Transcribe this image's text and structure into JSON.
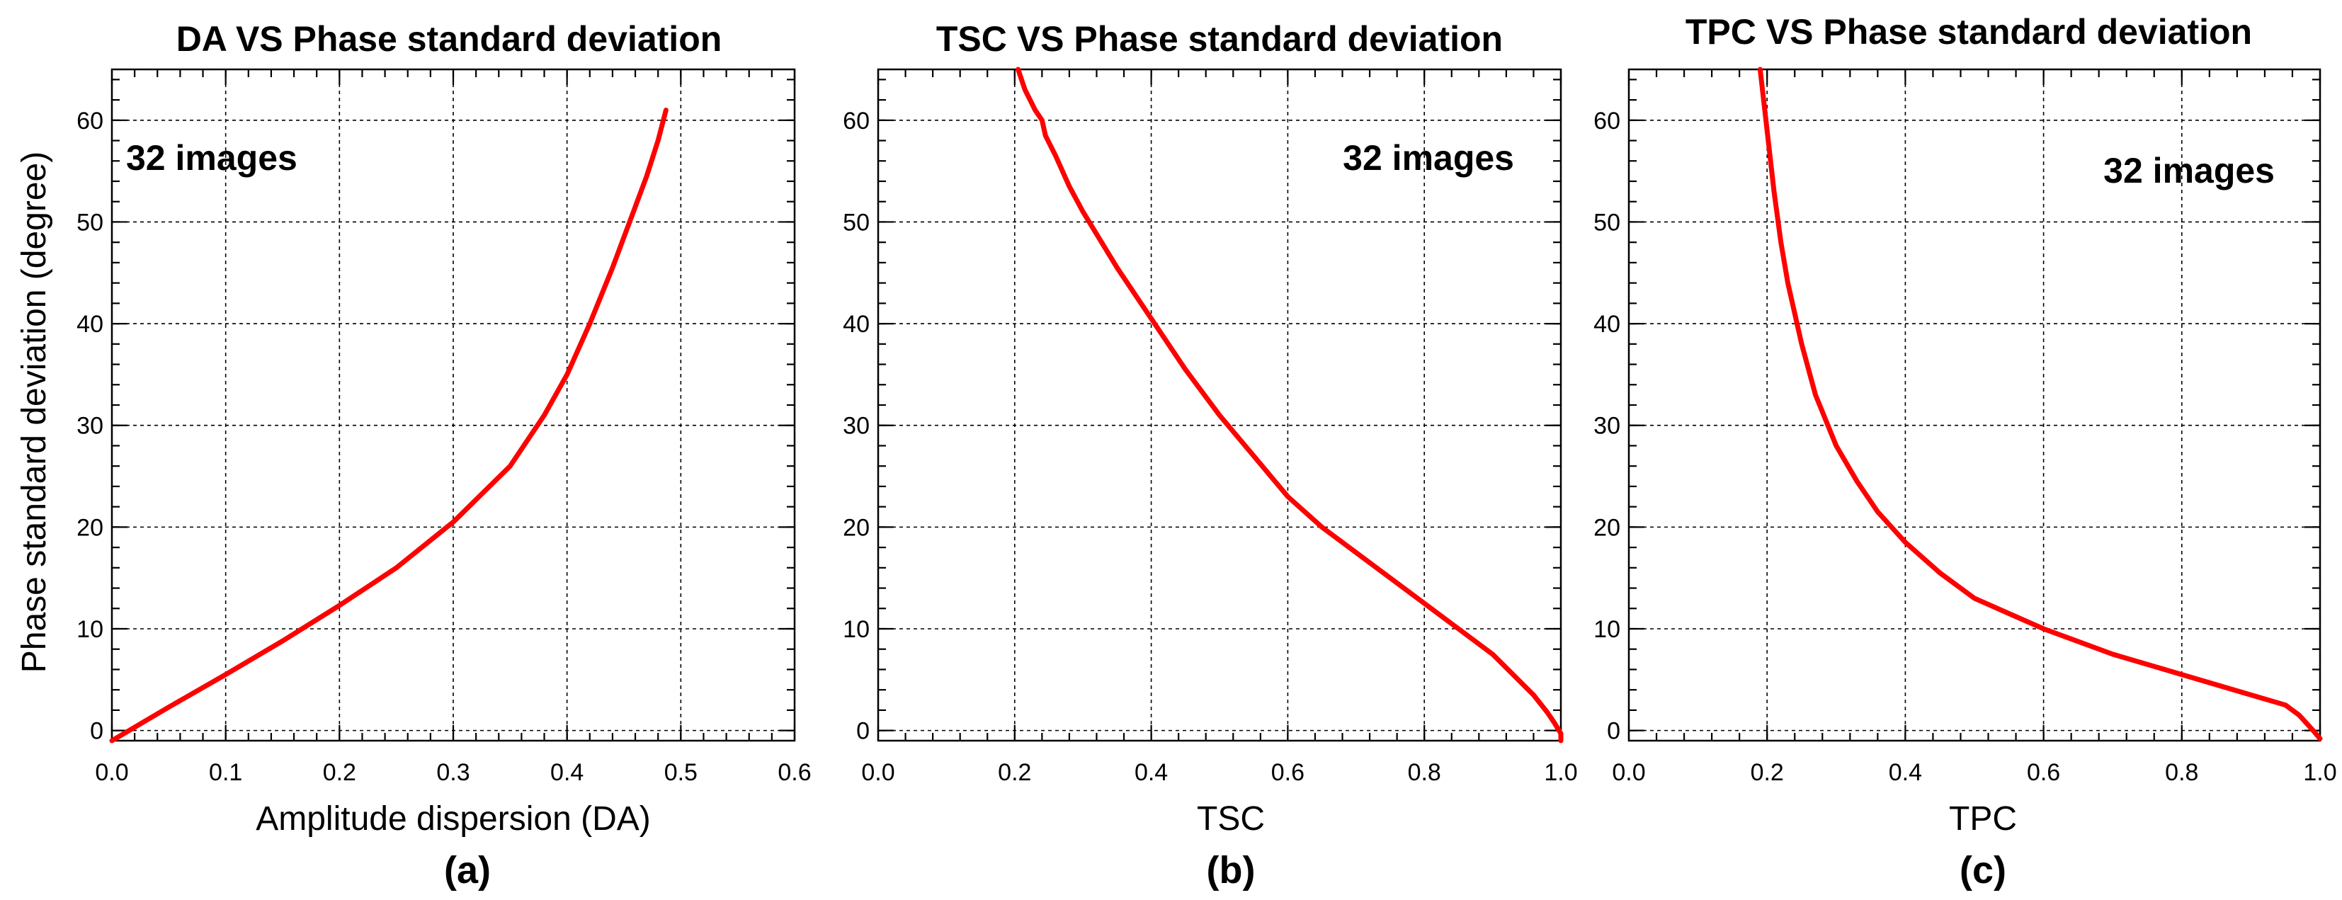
{
  "ylabel": "Phase standard deviation (degree)",
  "chart_data": [
    {
      "type": "line",
      "panel_label": "(a)",
      "title": "DA VS Phase standard deviation",
      "xlabel": "Amplitude dispersion (DA)",
      "ylabel": "Phase standard deviation (degree)",
      "xlim": [
        0,
        0.6
      ],
      "ylim": [
        -1,
        65
      ],
      "xticks": [
        0.0,
        0.1,
        0.2,
        0.3,
        0.4,
        0.5,
        0.6
      ],
      "xtick_labels": [
        "0.0",
        "0.1",
        "0.2",
        "0.3",
        "0.4",
        "0.5",
        "0.6"
      ],
      "yticks": [
        0,
        10,
        20,
        30,
        40,
        50,
        60
      ],
      "ytick_labels": [
        "0",
        "10",
        "20",
        "30",
        "40",
        "50",
        "60"
      ],
      "grid": true,
      "annotation": "32 images",
      "annotation_position": "top-left",
      "series": [
        {
          "color": "#ff0000",
          "x": [
            0.0,
            0.05,
            0.1,
            0.15,
            0.2,
            0.25,
            0.3,
            0.35,
            0.38,
            0.4,
            0.42,
            0.44,
            0.46,
            0.47,
            0.48,
            0.487
          ],
          "y": [
            -1,
            2.3,
            5.5,
            8.8,
            12.3,
            16.0,
            20.5,
            26.0,
            31.0,
            35.0,
            40.0,
            45.5,
            51.5,
            54.5,
            58.0,
            61.0
          ]
        }
      ]
    },
    {
      "type": "line",
      "panel_label": "(b)",
      "title": "TSC VS Phase standard deviation",
      "xlabel": "TSC",
      "ylabel": "",
      "xlim": [
        0,
        1
      ],
      "ylim": [
        -1,
        65
      ],
      "xticks": [
        0.0,
        0.2,
        0.4,
        0.6,
        0.8,
        1.0
      ],
      "xtick_labels": [
        "0.0",
        "0.2",
        "0.4",
        "0.6",
        "0.8",
        "1.0"
      ],
      "yticks": [
        0,
        10,
        20,
        30,
        40,
        50,
        60
      ],
      "ytick_labels": [
        "0",
        "10",
        "20",
        "30",
        "40",
        "50",
        "60"
      ],
      "grid": true,
      "annotation": "32 images",
      "annotation_position": "top-right",
      "series": [
        {
          "color": "#ff0000",
          "x": [
            0.205,
            0.215,
            0.23,
            0.24,
            0.245,
            0.26,
            0.28,
            0.3,
            0.35,
            0.4,
            0.45,
            0.5,
            0.55,
            0.6,
            0.65,
            0.7,
            0.75,
            0.8,
            0.85,
            0.9,
            0.93,
            0.96,
            0.98,
            0.99,
            1.0,
            1.0
          ],
          "y": [
            65,
            63.0,
            61.0,
            60.0,
            58.5,
            56.5,
            53.5,
            51.0,
            45.5,
            40.5,
            35.5,
            31.0,
            27.0,
            23.0,
            20.0,
            17.5,
            15.0,
            12.5,
            10.0,
            7.5,
            5.5,
            3.5,
            1.8,
            0.8,
            -0.3,
            -1
          ]
        }
      ]
    },
    {
      "type": "line",
      "panel_label": "(c)",
      "title": "TPC VS Phase standard deviation",
      "xlabel": "TPC",
      "ylabel": "",
      "xlim": [
        0,
        1
      ],
      "ylim": [
        -1,
        65
      ],
      "xticks": [
        0.0,
        0.2,
        0.4,
        0.6,
        0.8,
        1.0
      ],
      "xtick_labels": [
        "0.0",
        "0.2",
        "0.4",
        "0.6",
        "0.8",
        "1.0"
      ],
      "yticks": [
        0,
        10,
        20,
        30,
        40,
        50,
        60
      ],
      "ytick_labels": [
        "0",
        "10",
        "20",
        "30",
        "40",
        "50",
        "60"
      ],
      "grid": true,
      "annotation": "32 images",
      "annotation_position": "top-right",
      "series": [
        {
          "color": "#ff0000",
          "x": [
            0.19,
            0.2,
            0.21,
            0.22,
            0.23,
            0.25,
            0.27,
            0.3,
            0.33,
            0.36,
            0.4,
            0.45,
            0.5,
            0.55,
            0.6,
            0.7,
            0.8,
            0.9,
            0.95,
            0.97,
            0.99,
            1.0
          ],
          "y": [
            65,
            59.0,
            53.0,
            48.0,
            44.0,
            38.0,
            33.0,
            28.0,
            24.5,
            21.5,
            18.5,
            15.5,
            13.0,
            11.5,
            10.0,
            7.5,
            5.5,
            3.5,
            2.5,
            1.5,
            0.0,
            -0.8
          ]
        }
      ]
    }
  ]
}
